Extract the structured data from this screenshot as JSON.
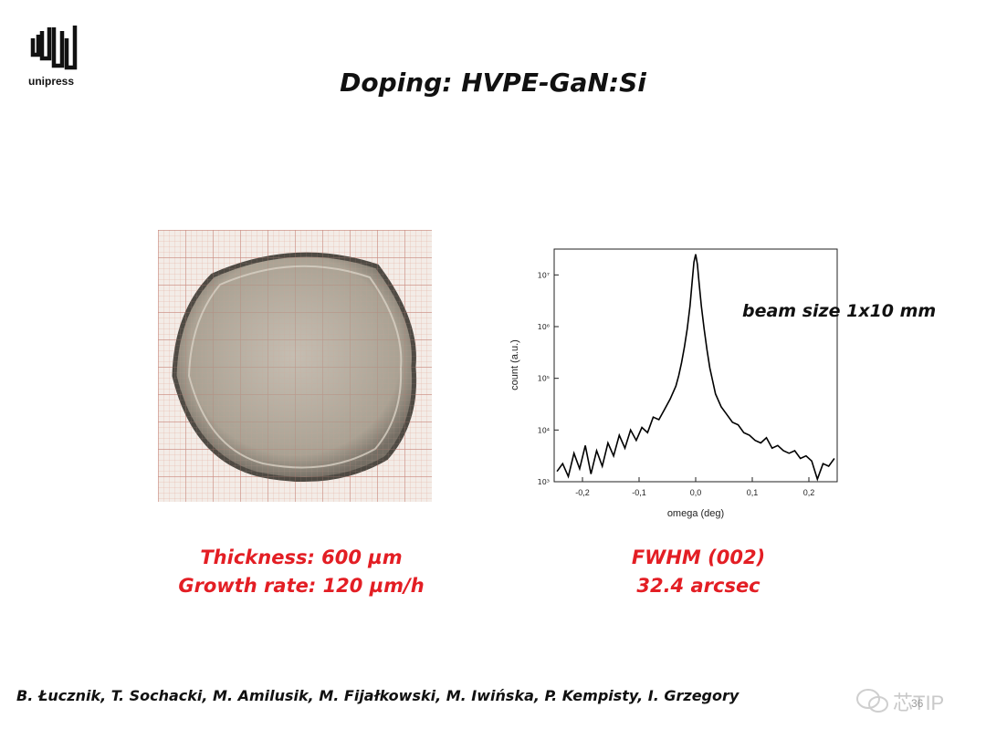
{
  "logo": {
    "text": "unipress"
  },
  "slide": {
    "title": "Doping: HVPE-GaN:Si",
    "beam_note": "beam size 1x10 mm",
    "left_caption": [
      "Thickness: 600 µm",
      "Growth rate: 120 µm/h"
    ],
    "right_caption": [
      "FWHM (002)",
      "32.4 arcsec"
    ],
    "authors": "B. Łucznik, T. Sochacki, M. Amilusik, M. Fijałkowski, M. Iwińska, P. Kempisty, I. Grzegory",
    "page_number": "36"
  },
  "watermark": {
    "text": "芯TIP"
  },
  "chart_data": {
    "type": "line",
    "xlabel": "omega (deg)",
    "ylabel": "count (a.u.)",
    "xlim": [
      -0.25,
      0.25
    ],
    "ylim_log10": [
      3,
      7.5
    ],
    "xticks": [
      "-0,2",
      "-0,1",
      "0,0",
      "0,1",
      "0,2"
    ],
    "xtick_values": [
      -0.2,
      -0.1,
      0.0,
      0.1,
      0.2
    ],
    "yticks": [
      "10³",
      "10⁴",
      "10⁵",
      "10⁶",
      "10⁷"
    ],
    "ytick_values_log10": [
      3,
      4,
      5,
      6,
      7
    ],
    "series": [
      {
        "x": [
          -0.245,
          -0.235,
          -0.225,
          -0.215,
          -0.205,
          -0.195,
          -0.185,
          -0.175,
          -0.165,
          -0.155,
          -0.145,
          -0.135,
          -0.125,
          -0.115,
          -0.105,
          -0.095,
          -0.085,
          -0.075,
          -0.065,
          -0.055,
          -0.045,
          -0.035,
          -0.03,
          -0.025,
          -0.02,
          -0.015,
          -0.01,
          -0.006,
          -0.003,
          0.0,
          0.003,
          0.006,
          0.01,
          0.015,
          0.02,
          0.025,
          0.03,
          0.035,
          0.045,
          0.055,
          0.065,
          0.075,
          0.085,
          0.095,
          0.105,
          0.115,
          0.125,
          0.135,
          0.145,
          0.155,
          0.165,
          0.175,
          0.185,
          0.195,
          0.205,
          0.215,
          0.225,
          0.235,
          0.245
        ],
        "y_log10": [
          3.2,
          3.35,
          3.1,
          3.55,
          3.25,
          3.7,
          3.15,
          3.6,
          3.3,
          3.75,
          3.5,
          3.9,
          3.65,
          4.0,
          3.8,
          4.05,
          3.95,
          4.25,
          4.2,
          4.4,
          4.6,
          4.85,
          5.05,
          5.3,
          5.6,
          5.95,
          6.4,
          6.9,
          7.25,
          7.4,
          7.2,
          6.85,
          6.4,
          5.95,
          5.55,
          5.2,
          4.95,
          4.7,
          4.45,
          4.3,
          4.15,
          4.1,
          3.95,
          3.9,
          3.8,
          3.75,
          3.85,
          3.65,
          3.7,
          3.6,
          3.55,
          3.6,
          3.45,
          3.5,
          3.4,
          3.05,
          3.35,
          3.3,
          3.45
        ]
      }
    ]
  }
}
